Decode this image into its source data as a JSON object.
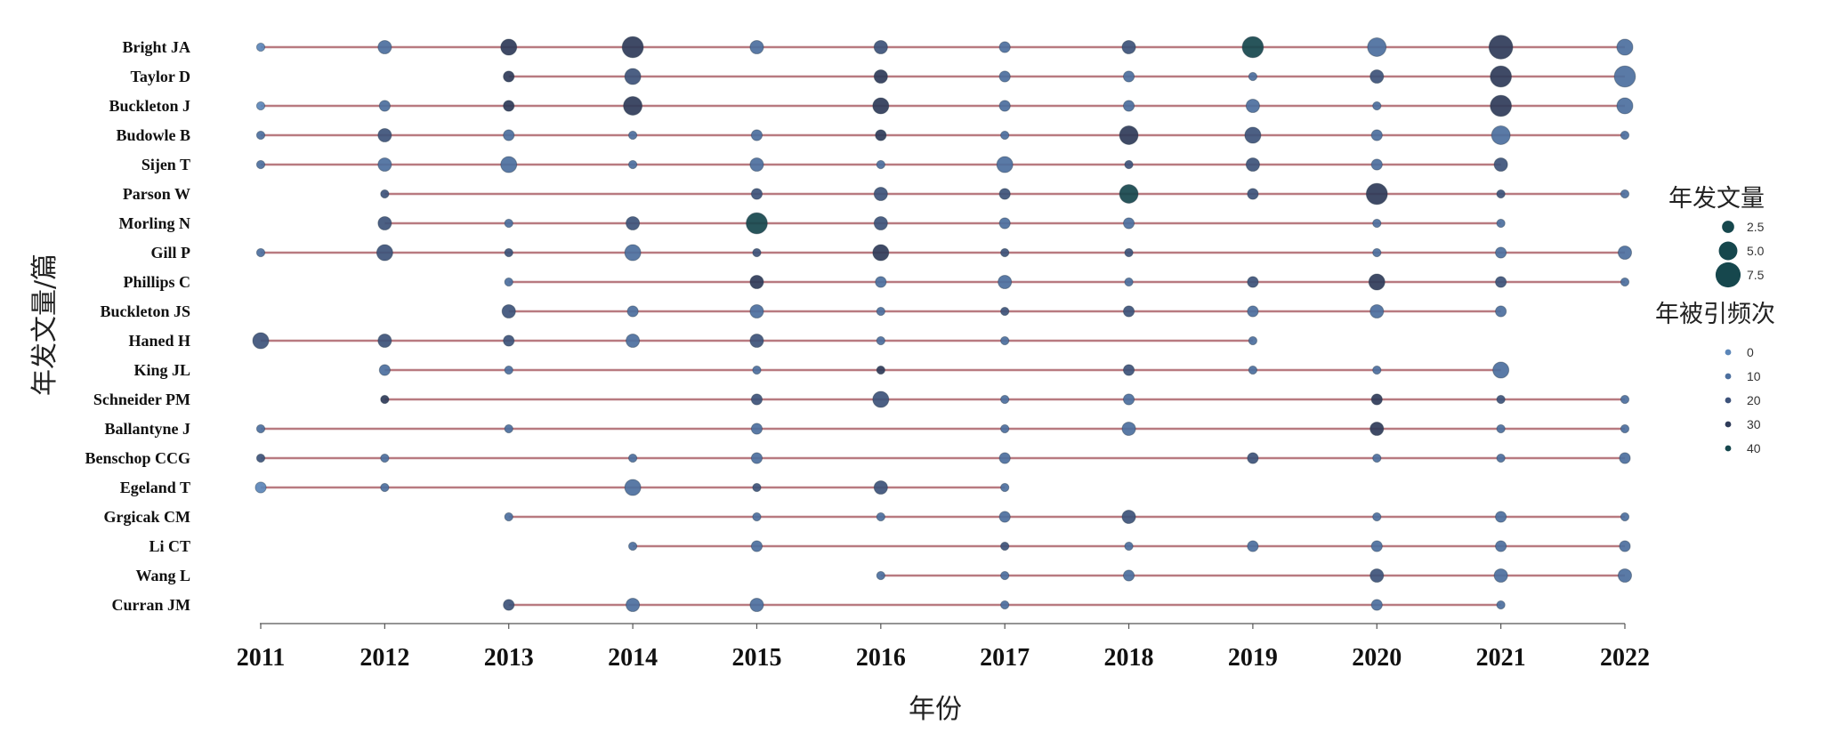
{
  "chart_data": {
    "type": "scatter",
    "xlabel": "年份",
    "ylabel": "年发文量/篇",
    "x": [
      2011,
      2012,
      2013,
      2014,
      2015,
      2016,
      2017,
      2018,
      2019,
      2020,
      2021,
      2022
    ],
    "xlim": [
      2011,
      2022
    ],
    "grid": false,
    "line_color": "#b87a80",
    "legend_size": {
      "title": "年发文量",
      "position": "right",
      "values": [
        2.5,
        5.0,
        7.5
      ],
      "labels": [
        "2.5",
        "5.0",
        "7.5"
      ]
    },
    "legend_color": {
      "title": "年被引频次",
      "position": "right",
      "values": [
        0,
        10,
        20,
        30,
        40
      ],
      "labels": [
        "0",
        "10",
        "20",
        "30",
        "40"
      ],
      "colors": [
        "#5b86b8",
        "#4c6f9e",
        "#3d527a",
        "#2f3b59",
        "#16474d"
      ]
    },
    "series": [
      {
        "name": "Bright JA",
        "points": [
          [
            2011,
            1,
            2
          ],
          [
            2012,
            3,
            6
          ],
          [
            2013,
            4,
            26
          ],
          [
            2014,
            6,
            28
          ],
          [
            2015,
            3,
            8
          ],
          [
            2016,
            3,
            22
          ],
          [
            2017,
            2,
            14
          ],
          [
            2018,
            3,
            22
          ],
          [
            2019,
            6,
            40
          ],
          [
            2020,
            5,
            8
          ],
          [
            2021,
            7,
            30
          ],
          [
            2022,
            4,
            8
          ]
        ]
      },
      {
        "name": "Taylor D",
        "points": [
          [
            2013,
            2,
            28
          ],
          [
            2014,
            4,
            24
          ],
          [
            2016,
            3,
            26
          ],
          [
            2017,
            2,
            6
          ],
          [
            2018,
            2,
            12
          ],
          [
            2019,
            1,
            6
          ],
          [
            2020,
            3,
            16
          ],
          [
            2021,
            6,
            30
          ],
          [
            2022,
            6,
            6
          ]
        ]
      },
      {
        "name": "Buckleton J",
        "points": [
          [
            2011,
            1,
            4
          ],
          [
            2012,
            2,
            6
          ],
          [
            2013,
            2,
            26
          ],
          [
            2014,
            5,
            26
          ],
          [
            2016,
            4,
            30
          ],
          [
            2017,
            2,
            6
          ],
          [
            2018,
            2,
            8
          ],
          [
            2019,
            3,
            12
          ],
          [
            2020,
            1,
            6
          ],
          [
            2021,
            6,
            30
          ],
          [
            2022,
            4,
            8
          ]
        ]
      },
      {
        "name": "Budowle B",
        "points": [
          [
            2011,
            1,
            14
          ],
          [
            2012,
            3,
            16
          ],
          [
            2013,
            2,
            8
          ],
          [
            2014,
            1,
            6
          ],
          [
            2015,
            2,
            14
          ],
          [
            2016,
            2,
            26
          ],
          [
            2017,
            1,
            8
          ],
          [
            2018,
            5,
            26
          ],
          [
            2019,
            4,
            20
          ],
          [
            2020,
            2,
            6
          ],
          [
            2021,
            5,
            8
          ],
          [
            2022,
            1,
            6
          ]
        ]
      },
      {
        "name": "Sijen T",
        "points": [
          [
            2011,
            1,
            6
          ],
          [
            2012,
            3,
            6
          ],
          [
            2013,
            4,
            8
          ],
          [
            2014,
            1,
            6
          ],
          [
            2015,
            3,
            10
          ],
          [
            2016,
            1,
            12
          ],
          [
            2017,
            4,
            14
          ],
          [
            2018,
            1,
            16
          ],
          [
            2019,
            3,
            16
          ],
          [
            2020,
            2,
            6
          ],
          [
            2021,
            3,
            18
          ]
        ]
      },
      {
        "name": "Parson W",
        "points": [
          [
            2012,
            1,
            16
          ],
          [
            2015,
            2,
            18
          ],
          [
            2016,
            3,
            18
          ],
          [
            2017,
            2,
            16
          ],
          [
            2018,
            5,
            36
          ],
          [
            2019,
            2,
            18
          ],
          [
            2020,
            6,
            26
          ],
          [
            2021,
            1,
            16
          ],
          [
            2022,
            1,
            6
          ]
        ]
      },
      {
        "name": "Morling N",
        "points": [
          [
            2012,
            3,
            18
          ],
          [
            2013,
            1,
            14
          ],
          [
            2014,
            3,
            22
          ],
          [
            2015,
            6,
            40
          ],
          [
            2016,
            3,
            20
          ],
          [
            2017,
            2,
            6
          ],
          [
            2018,
            2,
            14
          ],
          [
            2020,
            1,
            14
          ],
          [
            2021,
            1,
            6
          ]
        ]
      },
      {
        "name": "Gill P",
        "points": [
          [
            2011,
            1,
            6
          ],
          [
            2012,
            4,
            20
          ],
          [
            2013,
            1,
            20
          ],
          [
            2014,
            4,
            12
          ],
          [
            2015,
            1,
            22
          ],
          [
            2016,
            4,
            30
          ],
          [
            2017,
            1,
            16
          ],
          [
            2018,
            1,
            18
          ],
          [
            2020,
            1,
            14
          ],
          [
            2021,
            2,
            12
          ],
          [
            2022,
            3,
            8
          ]
        ]
      },
      {
        "name": "Phillips C",
        "points": [
          [
            2013,
            1,
            8
          ],
          [
            2015,
            3,
            26
          ],
          [
            2016,
            2,
            12
          ],
          [
            2017,
            3,
            8
          ],
          [
            2018,
            1,
            12
          ],
          [
            2019,
            2,
            16
          ],
          [
            2020,
            4,
            26
          ],
          [
            2021,
            2,
            18
          ],
          [
            2022,
            1,
            6
          ]
        ]
      },
      {
        "name": "Buckleton JS",
        "points": [
          [
            2013,
            3,
            18
          ],
          [
            2014,
            2,
            12
          ],
          [
            2015,
            3,
            10
          ],
          [
            2016,
            1,
            10
          ],
          [
            2017,
            1,
            16
          ],
          [
            2018,
            2,
            20
          ],
          [
            2019,
            2,
            12
          ],
          [
            2020,
            3,
            6
          ],
          [
            2021,
            2,
            6
          ]
        ]
      },
      {
        "name": "Haned H",
        "points": [
          [
            2011,
            4,
            20
          ],
          [
            2012,
            3,
            24
          ],
          [
            2013,
            2,
            18
          ],
          [
            2014,
            3,
            12
          ],
          [
            2015,
            3,
            22
          ],
          [
            2016,
            1,
            8
          ],
          [
            2017,
            1,
            6
          ],
          [
            2019,
            1,
            6
          ]
        ]
      },
      {
        "name": "King JL",
        "points": [
          [
            2012,
            2,
            8
          ],
          [
            2013,
            1,
            14
          ],
          [
            2015,
            1,
            12
          ],
          [
            2016,
            1,
            30
          ],
          [
            2018,
            2,
            16
          ],
          [
            2019,
            1,
            12
          ],
          [
            2020,
            1,
            8
          ],
          [
            2021,
            4,
            8
          ]
        ]
      },
      {
        "name": "Schneider PM",
        "points": [
          [
            2012,
            1,
            26
          ],
          [
            2015,
            2,
            22
          ],
          [
            2016,
            4,
            22
          ],
          [
            2017,
            1,
            6
          ],
          [
            2018,
            2,
            12
          ],
          [
            2019,
            0,
            0
          ],
          [
            2020,
            2,
            26
          ],
          [
            2021,
            1,
            16
          ],
          [
            2022,
            1,
            6
          ]
        ]
      },
      {
        "name": "Ballantyne J",
        "points": [
          [
            2011,
            1,
            6
          ],
          [
            2013,
            1,
            8
          ],
          [
            2015,
            2,
            6
          ],
          [
            2017,
            1,
            6
          ],
          [
            2018,
            3,
            12
          ],
          [
            2020,
            3,
            26
          ],
          [
            2021,
            1,
            12
          ],
          [
            2022,
            1,
            12
          ]
        ]
      },
      {
        "name": "Benschop CCG",
        "points": [
          [
            2011,
            1,
            16
          ],
          [
            2012,
            1,
            6
          ],
          [
            2014,
            1,
            6
          ],
          [
            2015,
            2,
            10
          ],
          [
            2017,
            2,
            6
          ],
          [
            2019,
            2,
            20
          ],
          [
            2020,
            1,
            6
          ],
          [
            2021,
            1,
            8
          ],
          [
            2022,
            2,
            6
          ]
        ]
      },
      {
        "name": "Egeland T",
        "points": [
          [
            2011,
            2,
            4
          ],
          [
            2012,
            1,
            6
          ],
          [
            2014,
            4,
            8
          ],
          [
            2015,
            1,
            16
          ],
          [
            2016,
            3,
            18
          ],
          [
            2017,
            1,
            6
          ]
        ]
      },
      {
        "name": "Grgicak CM",
        "points": [
          [
            2013,
            1,
            6
          ],
          [
            2015,
            1,
            14
          ],
          [
            2016,
            1,
            10
          ],
          [
            2017,
            2,
            8
          ],
          [
            2018,
            3,
            22
          ],
          [
            2020,
            1,
            14
          ],
          [
            2021,
            2,
            8
          ],
          [
            2022,
            1,
            6
          ]
        ]
      },
      {
        "name": "Li CT",
        "points": [
          [
            2014,
            1,
            10
          ],
          [
            2015,
            2,
            10
          ],
          [
            2017,
            1,
            16
          ],
          [
            2018,
            1,
            12
          ],
          [
            2019,
            2,
            10
          ],
          [
            2020,
            2,
            8
          ],
          [
            2021,
            2,
            6
          ],
          [
            2022,
            2,
            6
          ]
        ]
      },
      {
        "name": "Wang L",
        "points": [
          [
            2016,
            1,
            6
          ],
          [
            2017,
            1,
            12
          ],
          [
            2018,
            2,
            8
          ],
          [
            2020,
            3,
            16
          ],
          [
            2021,
            3,
            10
          ],
          [
            2022,
            3,
            6
          ]
        ]
      },
      {
        "name": "Curran JM",
        "points": [
          [
            2013,
            2,
            20
          ],
          [
            2014,
            3,
            10
          ],
          [
            2015,
            3,
            8
          ],
          [
            2017,
            1,
            6
          ],
          [
            2020,
            2,
            6
          ],
          [
            2021,
            1,
            6
          ]
        ]
      }
    ]
  }
}
